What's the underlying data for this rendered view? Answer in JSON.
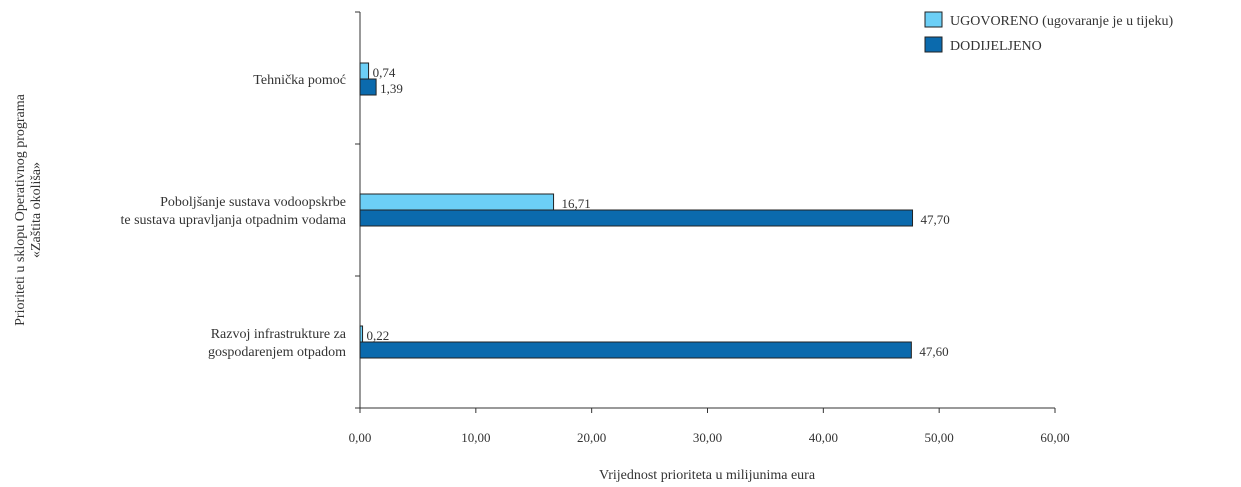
{
  "chart_data": {
    "type": "bar",
    "orientation": "horizontal",
    "categories": [
      [
        "Tehnička pomoć"
      ],
      [
        "Poboljšanje sustava vodoopskrbe",
        "te sustava upravljanja otpadnim vodama"
      ],
      [
        "Razvoj infrastrukture za",
        "gospodarenjem otpadom"
      ]
    ],
    "series": [
      {
        "name": "UGOVORENO (ugovaranje je u tijeku)",
        "color": "#6ccff6",
        "values": [
          0.74,
          16.71,
          0.22
        ],
        "labels": [
          "0,74",
          "16,71",
          "0,22"
        ]
      },
      {
        "name": "DODIJELJENO",
        "color": "#0b6aad",
        "values": [
          1.39,
          47.7,
          47.6
        ],
        "labels": [
          "1,39",
          "47,70",
          "47,60"
        ]
      }
    ],
    "xlabel": "Vrijednost prioriteta u milijunima eura",
    "ylabel": [
      "Prioriteti u sklopu Operativnog programa",
      "«Zaštita okoliša»"
    ],
    "xlim": [
      0,
      60
    ],
    "xticks": [
      0,
      10,
      20,
      30,
      40,
      50,
      60
    ],
    "xtick_labels": [
      "0,00",
      "10,00",
      "20,00",
      "30,00",
      "40,00",
      "50,00",
      "60,00"
    ],
    "grid": false,
    "legend_position": "top-right"
  }
}
